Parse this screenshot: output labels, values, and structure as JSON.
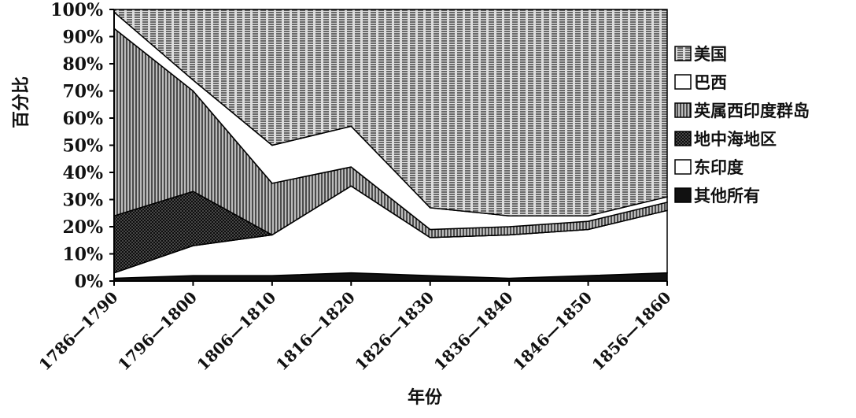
{
  "chart_data": {
    "type": "stacked-area",
    "ylabel": "百分比",
    "xlabel": "年份",
    "categories": [
      "1786—1790",
      "1796—1800",
      "1806—1810",
      "1816—1820",
      "1826—1830",
      "1836—1840",
      "1846—1850",
      "1856—1860"
    ],
    "ylim": [
      0,
      100
    ],
    "yticks": [
      {
        "value": 0,
        "label": "0%"
      },
      {
        "value": 10,
        "label": "10%"
      },
      {
        "value": 20,
        "label": "20%"
      },
      {
        "value": 30,
        "label": "30%"
      },
      {
        "value": 40,
        "label": "40%"
      },
      {
        "value": 50,
        "label": "50%"
      },
      {
        "value": 60,
        "label": "60%"
      },
      {
        "value": 70,
        "label": "70%"
      },
      {
        "value": 80,
        "label": "80%"
      },
      {
        "value": 90,
        "label": "90%"
      },
      {
        "value": 100,
        "label": "100%"
      }
    ],
    "series": [
      {
        "name": "其他所有",
        "color": "#111111",
        "values": [
          1,
          2,
          2,
          3,
          2,
          1,
          2,
          3
        ]
      },
      {
        "name": "东印度",
        "color": "#ffffff",
        "values": [
          2,
          11,
          15,
          32,
          14,
          16,
          17,
          23
        ]
      },
      {
        "name": "地中海地区",
        "color": "#555555",
        "values": [
          21,
          20,
          0,
          0,
          0,
          0,
          0,
          0
        ]
      },
      {
        "name": "英属西印度群岛",
        "color": "#bbbbbb",
        "values": [
          69,
          37,
          19,
          7,
          3,
          3,
          3,
          3
        ]
      },
      {
        "name": "巴西",
        "color": "#ffffff",
        "values": [
          6,
          4,
          14,
          15,
          8,
          4,
          2,
          2
        ]
      },
      {
        "name": "美国",
        "color": "#dddddd",
        "values": [
          1,
          26,
          50,
          43,
          73,
          76,
          76,
          69
        ]
      }
    ]
  }
}
